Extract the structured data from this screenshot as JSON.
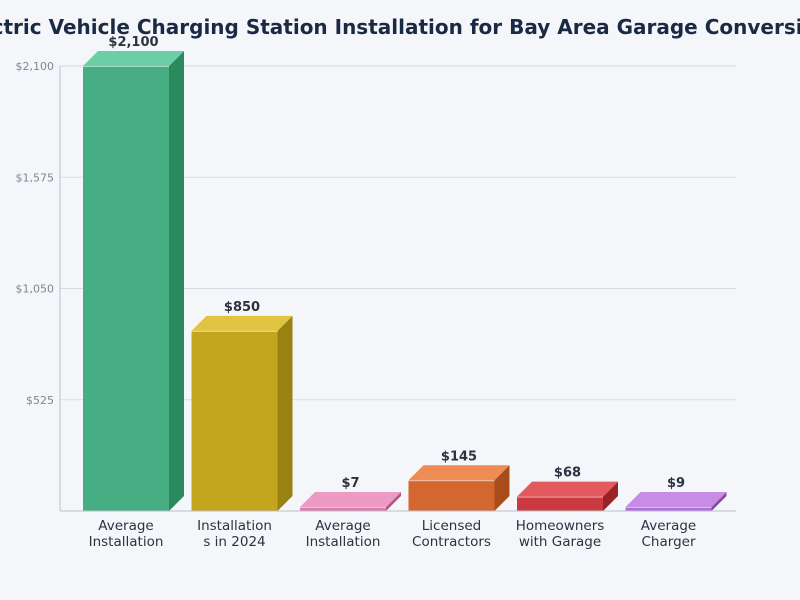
{
  "chart_data": {
    "type": "bar",
    "title": "Electric Vehicle Charging Station Installation for Bay Area Garage Conversions",
    "categories": [
      [
        "Average",
        "Installation"
      ],
      [
        "Installation",
        "s in 2024"
      ],
      [
        "Average",
        "Installation"
      ],
      [
        "Licensed",
        "Contractors"
      ],
      [
        "Homeowners",
        "with Garage"
      ],
      [
        "Average",
        "Charger"
      ]
    ],
    "values": [
      2100,
      850,
      7,
      145,
      68,
      9
    ],
    "value_labels": [
      "$2,100",
      "$850",
      "$7",
      "$145",
      "$68",
      "$9"
    ],
    "yticks": [
      0,
      525,
      1050,
      1575,
      2100
    ],
    "ytick_labels": [
      "",
      "$525",
      "$1,050",
      "$1,575",
      "$2,100"
    ],
    "ylim": [
      0,
      2100
    ],
    "xlabel": "",
    "ylabel": "",
    "grid": true,
    "colors": [
      {
        "front": "#47ad83",
        "top": "#6ccea4",
        "side": "#2a8a5e"
      },
      {
        "front": "#c4a61e",
        "top": "#e0c33e",
        "side": "#9a8212"
      },
      {
        "front": "#df7aab",
        "top": "#ec9cc4",
        "side": "#b5558a"
      },
      {
        "front": "#d46630",
        "top": "#ee8c53",
        "side": "#a94c1c"
      },
      {
        "front": "#c93b3f",
        "top": "#e25a5e",
        "side": "#9a2328"
      },
      {
        "front": "#b26bd8",
        "top": "#c68ce6",
        "side": "#8647ab"
      }
    ]
  }
}
